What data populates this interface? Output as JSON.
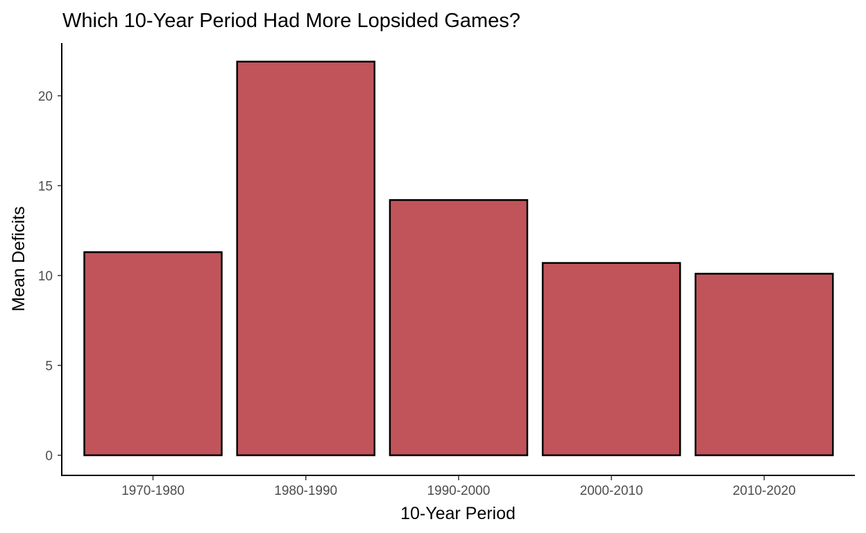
{
  "chart_data": {
    "type": "bar",
    "title": "Which 10-Year Period Had More Lopsided Games?",
    "xlabel": "10-Year Period",
    "ylabel": "Mean Deficits",
    "categories": [
      "1970-1980",
      "1980-1990",
      "1990-2000",
      "2000-2010",
      "2010-2020"
    ],
    "values": [
      11.3,
      21.9,
      14.2,
      10.7,
      10.1
    ],
    "ylim": [
      0,
      22.8
    ],
    "yticks": [
      0,
      5,
      10,
      15,
      20
    ],
    "ytick_labels": [
      "0",
      "5",
      "10",
      "15",
      "20"
    ],
    "bar_color": "#c0545a",
    "bar_edge_color": "#000000",
    "grid": false,
    "legend": "none"
  }
}
